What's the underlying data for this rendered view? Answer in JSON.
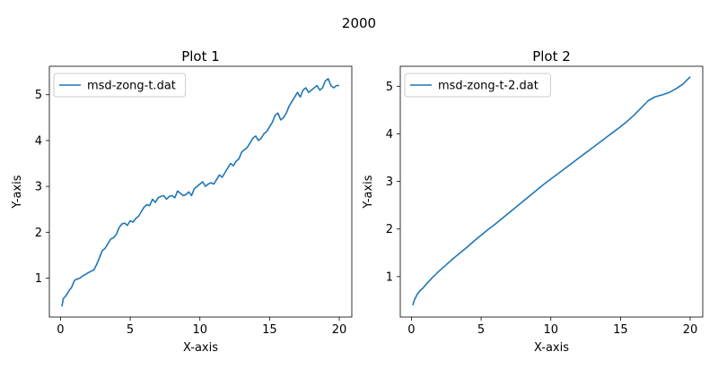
{
  "figure": {
    "suptitle": "2000"
  },
  "colors": {
    "line": "#1f77b4",
    "axes": "#000000"
  },
  "chart_data": [
    {
      "type": "line",
      "title": "Plot 1",
      "xlabel": "X-axis",
      "ylabel": "Y-axis",
      "xlim": [
        -0.8,
        20.9
      ],
      "ylim": [
        0.15,
        5.62
      ],
      "xticks": [
        0,
        5,
        10,
        15,
        20
      ],
      "yticks": [
        1,
        2,
        3,
        4,
        5
      ],
      "legend": {
        "placement": "upper-left"
      },
      "series": [
        {
          "name": "msd-zong-t.dat",
          "x": [
            0.1,
            0.2,
            0.4,
            0.6,
            0.8,
            1.0,
            1.2,
            1.4,
            1.6,
            1.8,
            2.0,
            2.2,
            2.4,
            2.6,
            2.8,
            3.0,
            3.2,
            3.4,
            3.6,
            3.8,
            4.0,
            4.2,
            4.4,
            4.6,
            4.8,
            5.0,
            5.2,
            5.4,
            5.6,
            5.8,
            6.0,
            6.2,
            6.4,
            6.6,
            6.8,
            7.0,
            7.2,
            7.4,
            7.6,
            7.8,
            8.0,
            8.2,
            8.4,
            8.6,
            8.8,
            9.0,
            9.2,
            9.4,
            9.6,
            9.8,
            10.0,
            10.2,
            10.4,
            10.6,
            10.8,
            11.0,
            11.2,
            11.4,
            11.6,
            11.8,
            12.0,
            12.2,
            12.4,
            12.6,
            12.8,
            13.0,
            13.2,
            13.4,
            13.6,
            13.8,
            14.0,
            14.2,
            14.4,
            14.6,
            14.8,
            15.0,
            15.2,
            15.4,
            15.6,
            15.8,
            16.0,
            16.2,
            16.4,
            16.6,
            16.8,
            17.0,
            17.2,
            17.4,
            17.6,
            17.8,
            18.0,
            18.2,
            18.4,
            18.6,
            18.8,
            19.0,
            19.2,
            19.4,
            19.6,
            19.8,
            20.0
          ],
          "y": [
            0.38,
            0.55,
            0.62,
            0.72,
            0.8,
            0.95,
            0.98,
            1.0,
            1.05,
            1.08,
            1.12,
            1.15,
            1.18,
            1.3,
            1.45,
            1.6,
            1.65,
            1.75,
            1.85,
            1.88,
            1.95,
            2.1,
            2.18,
            2.2,
            2.15,
            2.25,
            2.22,
            2.3,
            2.35,
            2.45,
            2.55,
            2.6,
            2.58,
            2.72,
            2.65,
            2.75,
            2.78,
            2.8,
            2.72,
            2.78,
            2.8,
            2.75,
            2.9,
            2.85,
            2.8,
            2.82,
            2.88,
            2.8,
            2.95,
            3.0,
            3.05,
            3.1,
            3.0,
            3.05,
            3.08,
            3.05,
            3.15,
            3.25,
            3.2,
            3.3,
            3.4,
            3.5,
            3.45,
            3.55,
            3.6,
            3.75,
            3.8,
            3.85,
            3.95,
            4.05,
            4.1,
            4.0,
            4.05,
            4.15,
            4.2,
            4.3,
            4.4,
            4.55,
            4.6,
            4.45,
            4.5,
            4.6,
            4.75,
            4.85,
            4.95,
            5.05,
            4.95,
            5.1,
            5.15,
            5.05,
            5.1,
            5.15,
            5.2,
            5.1,
            5.15,
            5.3,
            5.35,
            5.2,
            5.15,
            5.2,
            5.2
          ]
        }
      ]
    },
    {
      "type": "line",
      "title": "Plot 2",
      "xlabel": "X-axis",
      "ylabel": "Y-axis",
      "xlim": [
        -0.8,
        20.9
      ],
      "ylim": [
        0.15,
        5.42
      ],
      "xticks": [
        0,
        5,
        10,
        15,
        20
      ],
      "yticks": [
        1,
        2,
        3,
        4,
        5
      ],
      "legend": {
        "placement": "upper-left"
      },
      "series": [
        {
          "name": "msd-zong-t-2.dat",
          "x": [
            0.1,
            0.2,
            0.4,
            0.6,
            0.8,
            1.0,
            1.5,
            2.0,
            2.5,
            3.0,
            3.5,
            4.0,
            4.5,
            5.0,
            5.5,
            6.0,
            6.5,
            7.0,
            7.5,
            8.0,
            8.5,
            9.0,
            9.5,
            10.0,
            10.5,
            11.0,
            11.5,
            12.0,
            12.5,
            13.0,
            13.5,
            14.0,
            14.5,
            15.0,
            15.5,
            16.0,
            16.5,
            17.0,
            17.5,
            18.0,
            18.5,
            19.0,
            19.5,
            20.0
          ],
          "y": [
            0.4,
            0.5,
            0.62,
            0.7,
            0.75,
            0.82,
            0.98,
            1.12,
            1.25,
            1.38,
            1.5,
            1.62,
            1.75,
            1.87,
            1.99,
            2.1,
            2.22,
            2.34,
            2.46,
            2.58,
            2.7,
            2.82,
            2.94,
            3.05,
            3.16,
            3.27,
            3.38,
            3.49,
            3.6,
            3.71,
            3.82,
            3.93,
            4.04,
            4.15,
            4.27,
            4.4,
            4.55,
            4.7,
            4.78,
            4.82,
            4.87,
            4.95,
            5.05,
            5.2
          ]
        }
      ]
    }
  ]
}
